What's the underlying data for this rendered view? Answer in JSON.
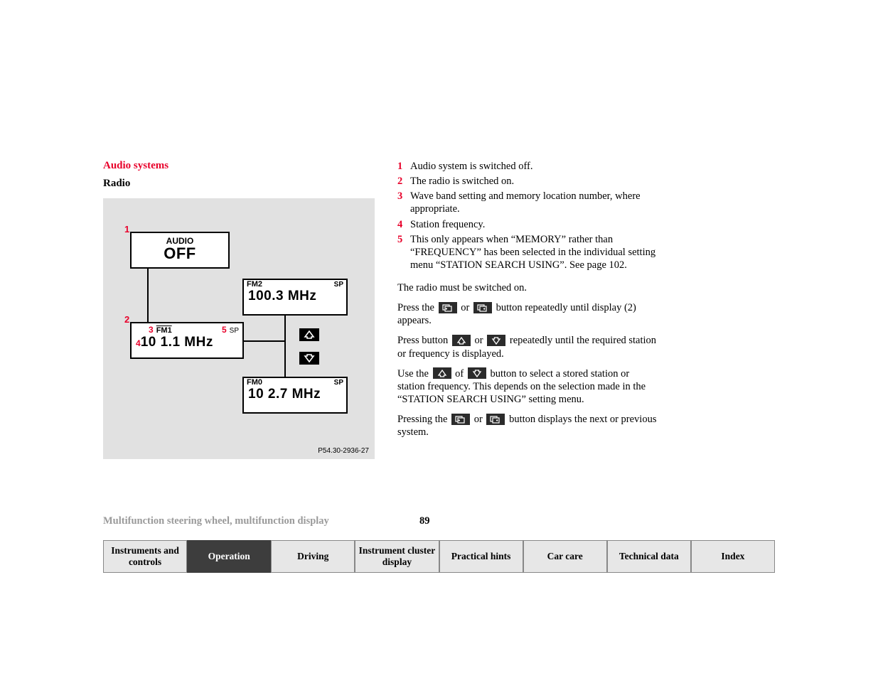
{
  "header": {
    "section_title": "Audio systems",
    "subsection": "Radio"
  },
  "figure": {
    "caption": "P54.30-2936-27",
    "background": "#e1e1e1",
    "box1": {
      "label_num": "1",
      "line1": "AUDIO",
      "line2": "OFF"
    },
    "box2": {
      "label_num": "2",
      "num3": "3",
      "band": "FM1",
      "num5": "5",
      "sp": "SP",
      "num4": "4",
      "freq": "10 1.1 MHz"
    },
    "box3": {
      "band": "FM2",
      "sp": "SP",
      "freq": "100.3 MHz"
    },
    "box4": {
      "band": "FM0",
      "sp": "SP",
      "freq": "10 2.7 MHz"
    }
  },
  "legend": [
    {
      "num": "1",
      "text": "Audio system is switched off."
    },
    {
      "num": "2",
      "text": "The radio is switched on."
    },
    {
      "num": "3",
      "text": "Wave band setting and memory location number, where appropriate."
    },
    {
      "num": "4",
      "text": "Station frequency."
    },
    {
      "num": "5",
      "text": "This only appears when “MEMORY” rather than “FREQUENCY” has been selected in the individual setting menu “STATION SEARCH USING”. See page 102."
    }
  ],
  "body": {
    "p1": "The radio must be switched on.",
    "p2a": "Press the ",
    "p2b": " or ",
    "p2c": " button repeatedly until display (2) appears.",
    "p3a": "Press button ",
    "p3b": " or ",
    "p3c": " repeatedly until the required station or frequency is displayed.",
    "p4a": "Use the ",
    "p4b": " of ",
    "p4c": " button to select a stored station or station frequency. This depends on the selection made in the “STATION SEARCH USING” setting menu.",
    "p5a": "Pressing the ",
    "p5b": " or ",
    "p5c": " button displays the next or previous system."
  },
  "footer": {
    "breadcrumb": "Multifunction steering wheel, multifunction display",
    "page_number": "89",
    "tabs": [
      "Instruments and controls",
      "Operation",
      "Driving",
      "Instrument cluster display",
      "Practical hints",
      "Car care",
      "Technical data",
      "Index"
    ],
    "active_tab_index": 1
  },
  "colors": {
    "accent": "#e8002a",
    "grey_bg": "#e1e1e1",
    "tab_inactive": "#e7e7e7",
    "tab_active": "#3d3d3d"
  }
}
